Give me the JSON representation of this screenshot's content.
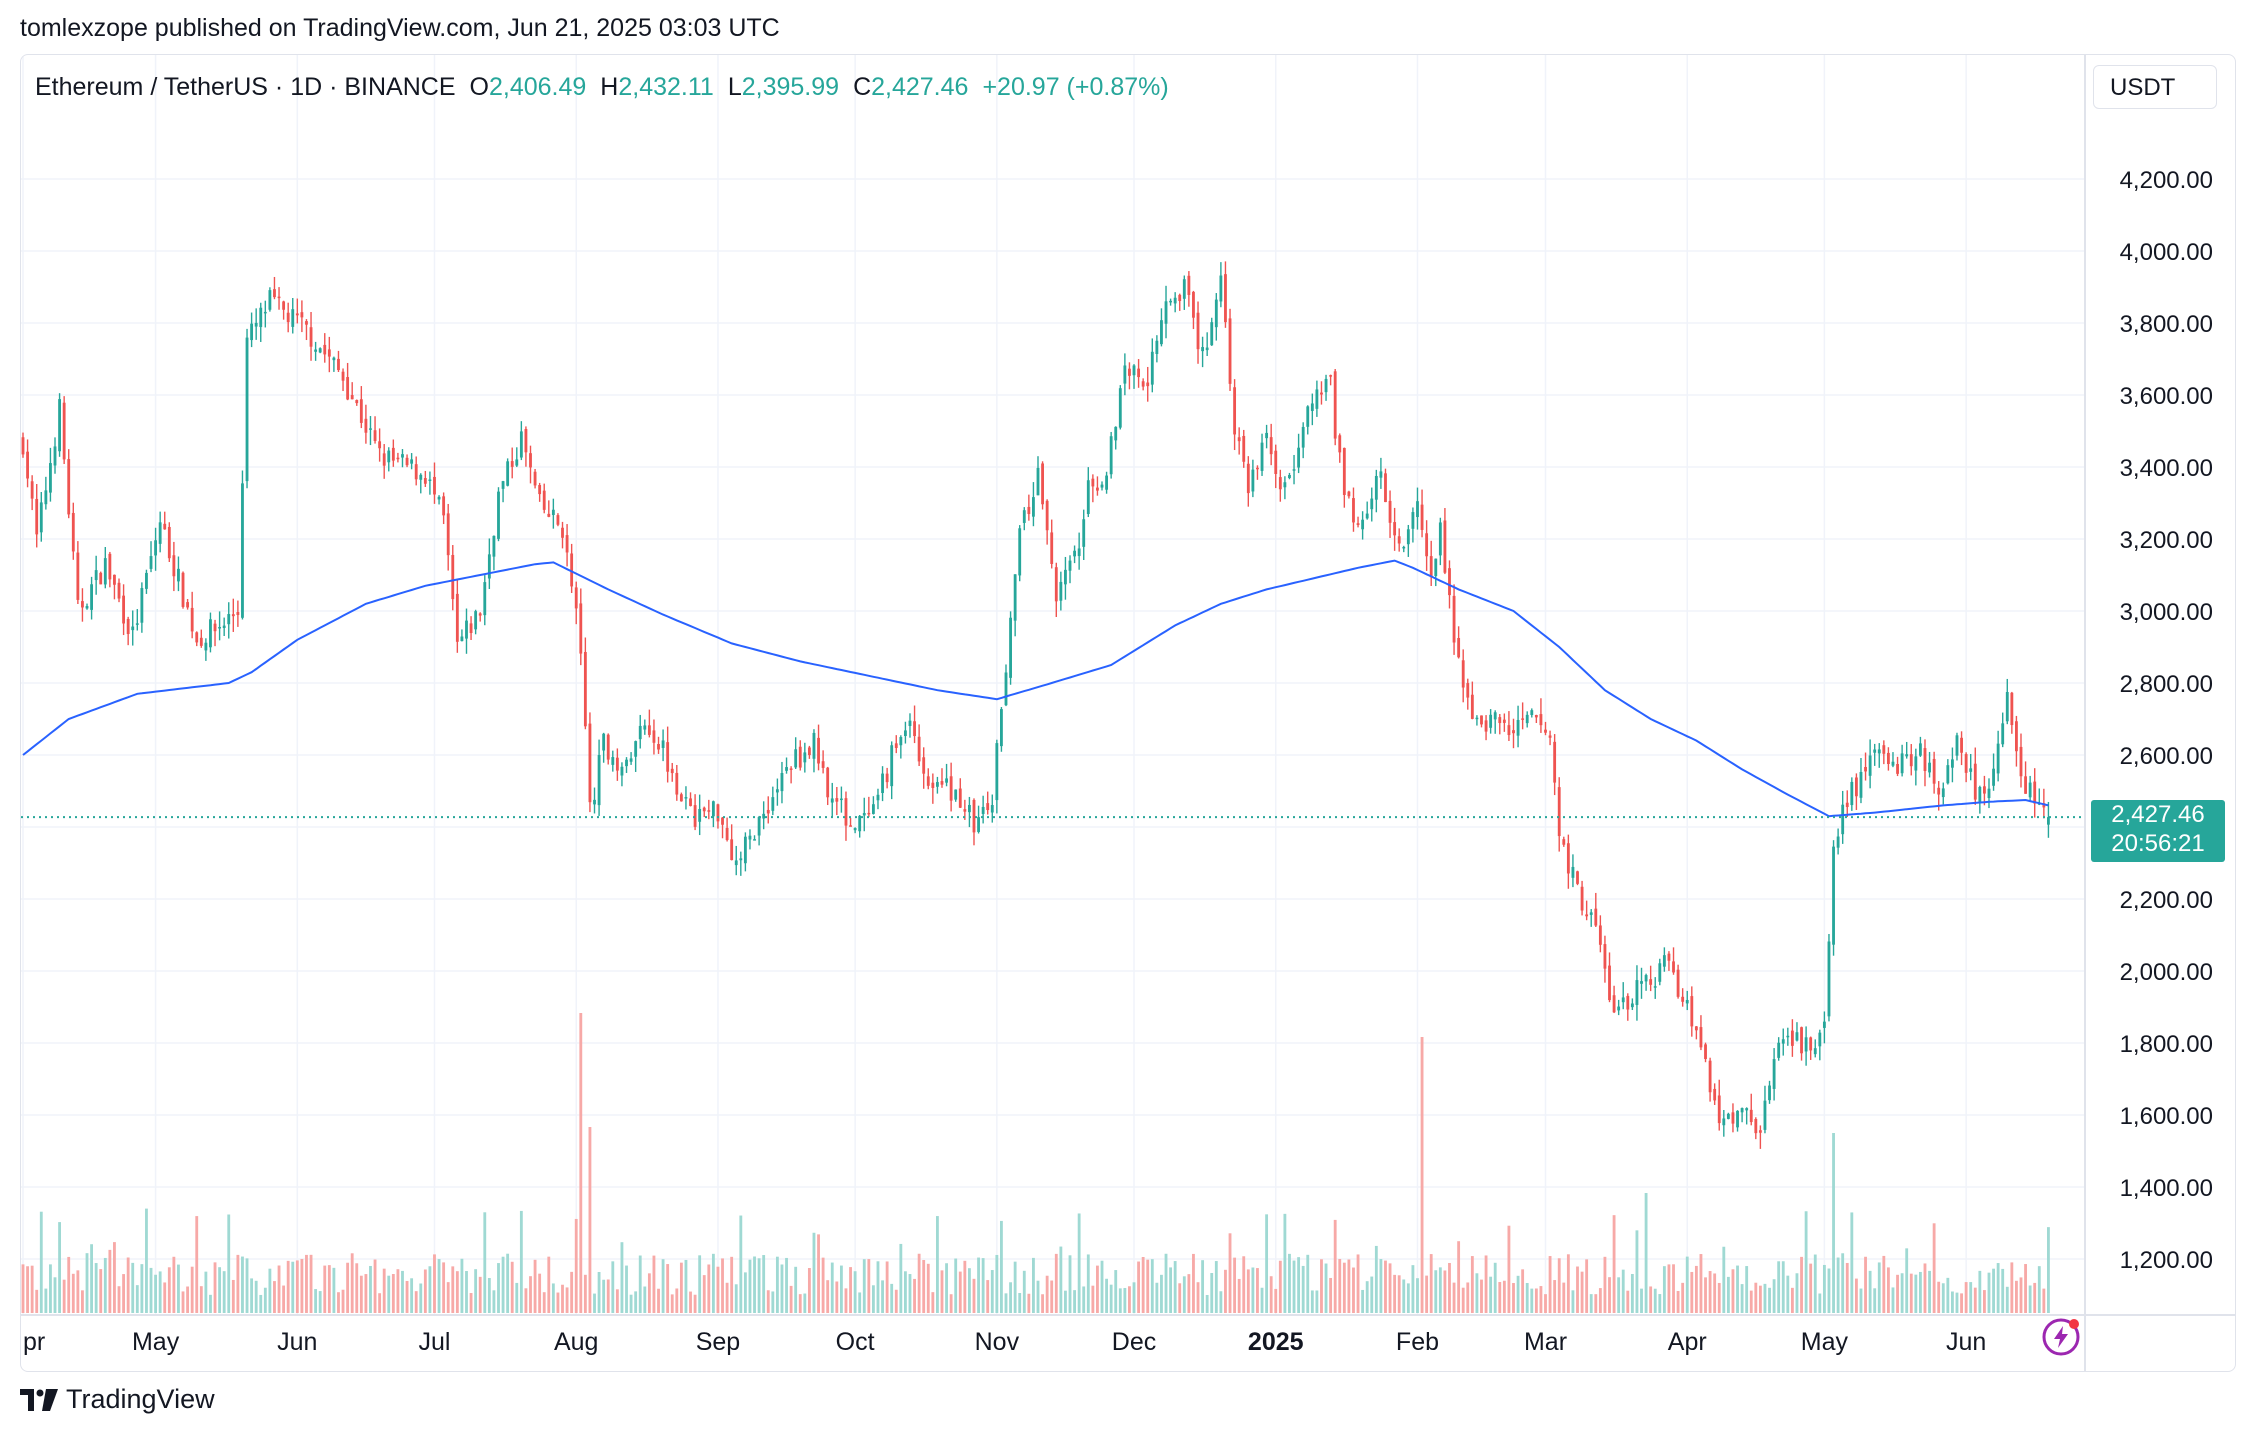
{
  "header": {
    "publish_line": "tomlexzope published on TradingView.com, Jun 21, 2025 03:03 UTC"
  },
  "legend": {
    "symbol": "Ethereum / TetherUS · 1D · BINANCE",
    "open_label": "O",
    "open": "2,406.49",
    "high_label": "H",
    "high": "2,432.11",
    "low_label": "L",
    "low": "2,395.99",
    "close_label": "C",
    "close": "2,427.46",
    "change": "+20.97 (+0.87%)"
  },
  "price_axis": {
    "unit": "USDT",
    "last_price": "2,427.46",
    "countdown": "20:56:21"
  },
  "footer": {
    "brand": "TradingView"
  },
  "colors": {
    "up": "#26a69a",
    "down": "#ef5350",
    "ma": "#2962ff",
    "up_volume": "#9fd9d3",
    "down_volume": "#f7a9a7",
    "grid": "#f0f3fa",
    "axis_text": "#131722"
  },
  "icons": {
    "logo": "tradingview-logo-icon",
    "bolt": "lightning-bolt-icon"
  },
  "chart_data": {
    "type": "candlestick",
    "title": "Ethereum / TetherUS · 1D · BINANCE",
    "ylim": [
      1100,
      4350
    ],
    "y_ticks": [
      1200,
      1400,
      1600,
      1800,
      2000,
      2200,
      2400,
      2600,
      2800,
      3000,
      3200,
      3400,
      3600,
      3800,
      4000,
      4200
    ],
    "y_tick_labels": [
      "1,200.00",
      "1,400.00",
      "1,600.00",
      "1,800.00",
      "2,000.00",
      "2,200.00",
      "2,400.00",
      "2,600.00",
      "2,800.00",
      "3,000.00",
      "3,200.00",
      "3,400.00",
      "3,600.00",
      "3,800.00",
      "4,000.00",
      "4,200.00"
    ],
    "x_labels": [
      {
        "label": "pr",
        "index": 0,
        "bold": false
      },
      {
        "label": "May",
        "index": 29,
        "bold": false
      },
      {
        "label": "Jun",
        "index": 60,
        "bold": false
      },
      {
        "label": "Jul",
        "index": 90,
        "bold": false
      },
      {
        "label": "Aug",
        "index": 121,
        "bold": false
      },
      {
        "label": "Sep",
        "index": 152,
        "bold": false
      },
      {
        "label": "Oct",
        "index": 182,
        "bold": false
      },
      {
        "label": "Nov",
        "index": 213,
        "bold": false
      },
      {
        "label": "Dec",
        "index": 243,
        "bold": false
      },
      {
        "label": "2025",
        "index": 274,
        "bold": true
      },
      {
        "label": "Feb",
        "index": 305,
        "bold": false
      },
      {
        "label": "Mar",
        "index": 333,
        "bold": false
      },
      {
        "label": "Apr",
        "index": 364,
        "bold": false
      },
      {
        "label": "May",
        "index": 394,
        "bold": false
      },
      {
        "label": "Jun",
        "index": 425,
        "bold": false
      }
    ],
    "close_anchors": [
      [
        0,
        3470
      ],
      [
        3,
        3200
      ],
      [
        8,
        3560
      ],
      [
        12,
        3000
      ],
      [
        18,
        3130
      ],
      [
        24,
        2930
      ],
      [
        30,
        3250
      ],
      [
        38,
        2920
      ],
      [
        42,
        2950
      ],
      [
        47,
        3000
      ],
      [
        49,
        3750
      ],
      [
        54,
        3860
      ],
      [
        62,
        3780
      ],
      [
        70,
        3650
      ],
      [
        78,
        3430
      ],
      [
        88,
        3380
      ],
      [
        92,
        3250
      ],
      [
        95,
        2900
      ],
      [
        100,
        3000
      ],
      [
        104,
        3320
      ],
      [
        109,
        3480
      ],
      [
        113,
        3290
      ],
      [
        118,
        3230
      ],
      [
        122,
        2900
      ],
      [
        124,
        2450
      ],
      [
        127,
        2630
      ],
      [
        132,
        2560
      ],
      [
        136,
        2700
      ],
      [
        140,
        2620
      ],
      [
        146,
        2430
      ],
      [
        152,
        2450
      ],
      [
        156,
        2300
      ],
      [
        162,
        2440
      ],
      [
        168,
        2580
      ],
      [
        173,
        2630
      ],
      [
        177,
        2480
      ],
      [
        182,
        2400
      ],
      [
        186,
        2430
      ],
      [
        190,
        2600
      ],
      [
        194,
        2700
      ],
      [
        198,
        2520
      ],
      [
        204,
        2500
      ],
      [
        208,
        2410
      ],
      [
        212,
        2460
      ],
      [
        214,
        2750
      ],
      [
        218,
        3200
      ],
      [
        222,
        3380
      ],
      [
        226,
        3050
      ],
      [
        230,
        3140
      ],
      [
        233,
        3330
      ],
      [
        237,
        3400
      ],
      [
        241,
        3680
      ],
      [
        246,
        3650
      ],
      [
        250,
        3880
      ],
      [
        254,
        3900
      ],
      [
        258,
        3700
      ],
      [
        262,
        3940
      ],
      [
        265,
        3500
      ],
      [
        268,
        3350
      ],
      [
        272,
        3480
      ],
      [
        276,
        3330
      ],
      [
        282,
        3580
      ],
      [
        286,
        3620
      ],
      [
        289,
        3300
      ],
      [
        293,
        3250
      ],
      [
        297,
        3380
      ],
      [
        301,
        3180
      ],
      [
        305,
        3310
      ],
      [
        308,
        3070
      ],
      [
        310,
        3230
      ],
      [
        313,
        2900
      ],
      [
        318,
        2680
      ],
      [
        322,
        2700
      ],
      [
        326,
        2660
      ],
      [
        330,
        2700
      ],
      [
        334,
        2650
      ],
      [
        336,
        2380
      ],
      [
        340,
        2220
      ],
      [
        344,
        2120
      ],
      [
        348,
        1880
      ],
      [
        352,
        1930
      ],
      [
        356,
        1980
      ],
      [
        360,
        2020
      ],
      [
        364,
        1900
      ],
      [
        367,
        1810
      ],
      [
        371,
        1580
      ],
      [
        375,
        1600
      ],
      [
        380,
        1580
      ],
      [
        384,
        1780
      ],
      [
        388,
        1800
      ],
      [
        392,
        1790
      ],
      [
        394,
        1840
      ],
      [
        396,
        2350
      ],
      [
        399,
        2480
      ],
      [
        403,
        2560
      ],
      [
        407,
        2620
      ],
      [
        411,
        2570
      ],
      [
        415,
        2620
      ],
      [
        419,
        2500
      ],
      [
        423,
        2650
      ],
      [
        427,
        2510
      ],
      [
        431,
        2540
      ],
      [
        434,
        2770
      ],
      [
        437,
        2510
      ],
      [
        440,
        2480
      ],
      [
        443,
        2406
      ]
    ],
    "ma_anchors": [
      [
        0,
        2600
      ],
      [
        10,
        2700
      ],
      [
        25,
        2770
      ],
      [
        45,
        2800
      ],
      [
        50,
        2830
      ],
      [
        60,
        2920
      ],
      [
        75,
        3020
      ],
      [
        88,
        3070
      ],
      [
        100,
        3100
      ],
      [
        112,
        3130
      ],
      [
        116,
        3135
      ],
      [
        128,
        3060
      ],
      [
        140,
        2990
      ],
      [
        155,
        2910
      ],
      [
        170,
        2860
      ],
      [
        185,
        2820
      ],
      [
        200,
        2780
      ],
      [
        213,
        2755
      ],
      [
        225,
        2800
      ],
      [
        238,
        2850
      ],
      [
        252,
        2960
      ],
      [
        262,
        3020
      ],
      [
        272,
        3060
      ],
      [
        282,
        3090
      ],
      [
        292,
        3120
      ],
      [
        300,
        3140
      ],
      [
        304,
        3120
      ],
      [
        314,
        3060
      ],
      [
        326,
        3000
      ],
      [
        336,
        2900
      ],
      [
        346,
        2780
      ],
      [
        356,
        2700
      ],
      [
        366,
        2640
      ],
      [
        376,
        2560
      ],
      [
        386,
        2490
      ],
      [
        395,
        2430
      ],
      [
        405,
        2440
      ],
      [
        420,
        2460
      ],
      [
        430,
        2470
      ],
      [
        438,
        2475
      ],
      [
        443,
        2460
      ]
    ],
    "volume_spikes": [
      [
        122,
        1.0
      ],
      [
        124,
        0.62
      ],
      [
        306,
        0.92
      ],
      [
        355,
        0.4
      ],
      [
        396,
        0.6
      ]
    ],
    "last_price": 2427.46,
    "n_bars": 444
  }
}
